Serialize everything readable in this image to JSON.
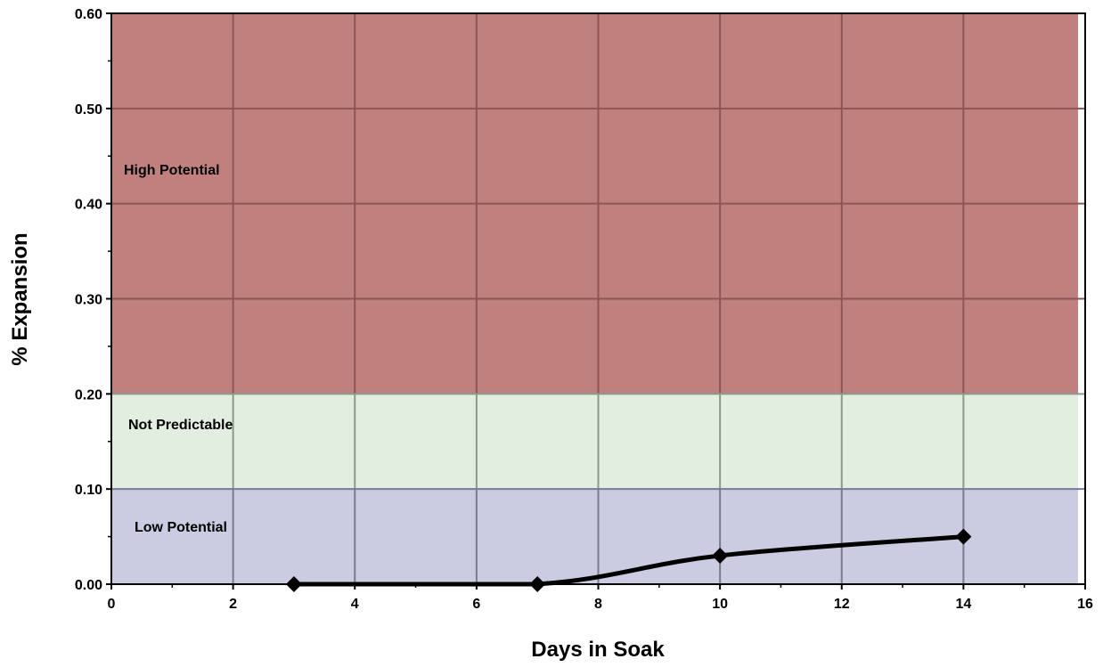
{
  "chart_data": {
    "type": "line",
    "title": "",
    "xlabel": "Days in Soak",
    "ylabel": "% Expansion",
    "xlim": [
      0,
      16
    ],
    "ylim": [
      0,
      0.6
    ],
    "x_ticks": [
      "0",
      "2",
      "4",
      "6",
      "8",
      "10",
      "12",
      "14",
      "16"
    ],
    "y_ticks": [
      "0.00",
      "0.10",
      "0.20",
      "0.30",
      "0.40",
      "0.50",
      "0.60"
    ],
    "grid": true,
    "legend": "none",
    "bands": [
      {
        "label": "High Potential",
        "y_from": 0.2,
        "y_to": 0.6,
        "color": "#c0807e",
        "grid_color": "#8e5555"
      },
      {
        "label": "Not Predictable",
        "y_from": 0.1,
        "y_to": 0.2,
        "color": "#e2efe0",
        "grid_color": "#8a9a8a"
      },
      {
        "label": "Low Potential",
        "y_from": 0.0,
        "y_to": 0.1,
        "color": "#cbcbe2",
        "grid_color": "#7a7a95"
      }
    ],
    "series": [
      {
        "x": [
          3,
          7,
          10,
          14
        ],
        "y": [
          0.0,
          0.0,
          0.03,
          0.05
        ],
        "color": "#000000",
        "marker": "diamond"
      }
    ]
  }
}
